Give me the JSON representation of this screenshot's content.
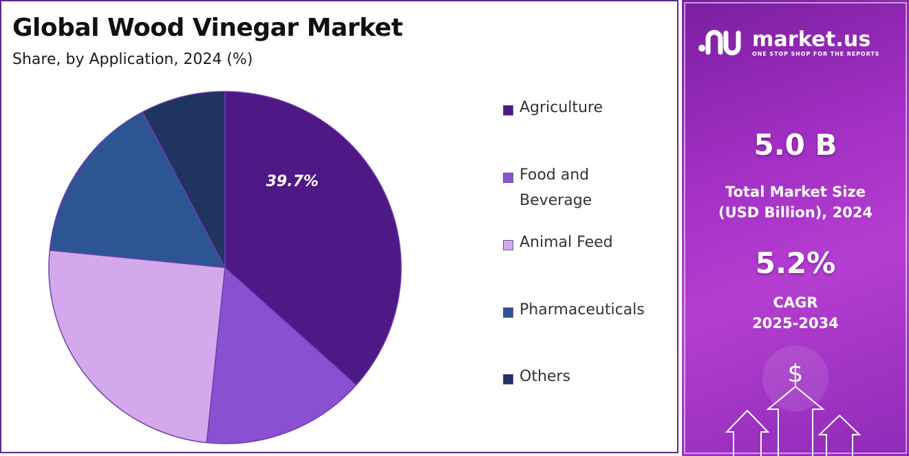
{
  "header": {
    "title": "Global Wood Vinegar Market",
    "subtitle": "Share, by Application, 2024 (%)"
  },
  "chart_data": {
    "type": "pie",
    "title": "Global Wood Vinegar Market",
    "subtitle": "Share, by Application, 2024 (%)",
    "categories": [
      "Agriculture",
      "Food and Beverage",
      "Animal Feed",
      "Pharmaceuticals",
      "Others"
    ],
    "values": [
      39.7,
      16.3,
      27.0,
      17.0,
      8.4
    ],
    "labeled_values": [
      "39.7%",
      "",
      "",
      "",
      ""
    ],
    "colors": [
      "#4e1886",
      "#8b4fd1",
      "#d3a9ec",
      "#2e5593",
      "#1f3461"
    ],
    "legend_position": "right"
  },
  "legend": {
    "items": [
      {
        "label": "Agriculture",
        "color": "#4e1886"
      },
      {
        "label": "Food and Beverage",
        "color": "#8b4fd1"
      },
      {
        "label": "Animal Feed",
        "color": "#d3a9ec"
      },
      {
        "label": "Pharmaceuticals",
        "color": "#2e5593"
      },
      {
        "label": "Others",
        "color": "#1f3461"
      }
    ]
  },
  "brand": {
    "name": "market.us",
    "tagline": "ONE STOP SHOP FOR THE REPORTS"
  },
  "metrics": {
    "market_size_value": "5.0 B",
    "market_size_label_line1": "Total Market Size",
    "market_size_label_line2": "(USD Billion), 2024",
    "cagr_value": "5.2%",
    "cagr_label_line1": "CAGR",
    "cagr_label_line2": "2025-2034"
  },
  "icons": {
    "dollar": "$",
    "growth": "growth-arrows-icon"
  }
}
